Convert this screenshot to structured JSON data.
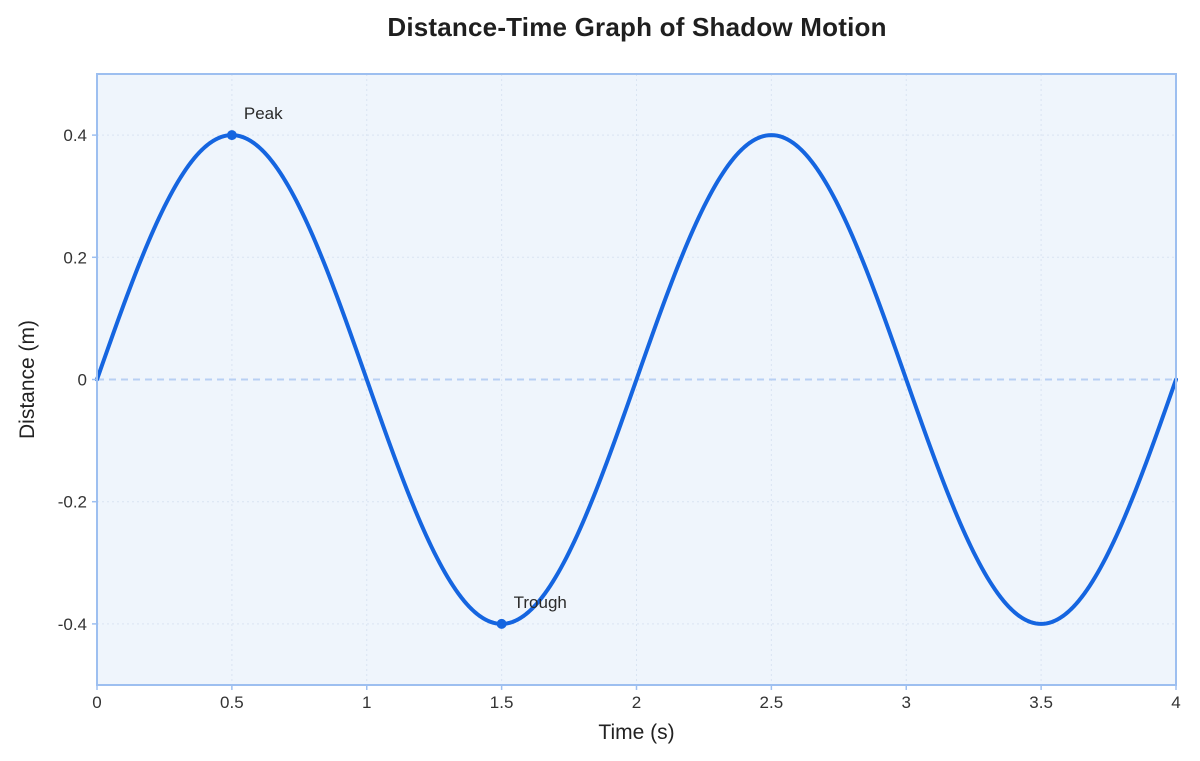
{
  "chart_data": {
    "type": "line",
    "title": "Distance-Time Graph of Shadow Motion",
    "xlabel": "Time (s)",
    "ylabel": "Distance (m)",
    "xlim": [
      0,
      4
    ],
    "ylim": [
      -0.5,
      0.5
    ],
    "x_ticks": [
      0,
      0.5,
      1,
      1.5,
      2,
      2.5,
      3,
      3.5,
      4
    ],
    "x_tick_labels": [
      "0",
      "0.5",
      "1",
      "1.5",
      "2",
      "2.5",
      "3",
      "3.5",
      "4"
    ],
    "y_ticks": [
      -0.4,
      -0.2,
      0,
      0.2,
      0.4
    ],
    "y_tick_labels": [
      "-0.4",
      "-0.2",
      "0",
      "0.2",
      "0.4"
    ],
    "grid": true,
    "zero_reference_line": true,
    "series": [
      {
        "x": [
          0,
          0.1,
          0.2,
          0.3,
          0.4,
          0.5,
          0.6,
          0.7,
          0.8,
          0.9,
          1,
          1.1,
          1.2,
          1.3,
          1.4,
          1.5,
          1.6,
          1.7,
          1.8,
          1.9,
          2,
          2.1,
          2.2,
          2.3,
          2.4,
          2.5,
          2.6,
          2.7,
          2.8,
          2.9,
          3,
          3.1,
          3.2,
          3.3,
          3.4,
          3.5,
          3.6,
          3.7,
          3.8,
          3.9,
          4
        ],
        "y": [
          0,
          0.124,
          0.235,
          0.324,
          0.38,
          0.4,
          0.38,
          0.324,
          0.235,
          0.124,
          0,
          -0.124,
          -0.235,
          -0.324,
          -0.38,
          -0.4,
          -0.38,
          -0.324,
          -0.235,
          -0.124,
          0,
          0.124,
          0.235,
          0.324,
          0.38,
          0.4,
          0.38,
          0.324,
          0.235,
          0.124,
          0,
          -0.124,
          -0.235,
          -0.324,
          -0.38,
          -0.4,
          -0.38,
          -0.324,
          -0.235,
          -0.124,
          0
        ],
        "color": "#1565e0"
      }
    ],
    "annotations": [
      {
        "label": "Peak",
        "x": 0.5,
        "y": 0.4
      },
      {
        "label": "Trough",
        "x": 1.5,
        "y": -0.4
      }
    ],
    "colors": {
      "line": "#1565e0",
      "plot_background": "#eff5fc",
      "plot_border": "#9dbff0",
      "grid": "#d9e4f2",
      "zero_line": "#b8d0f3"
    }
  }
}
